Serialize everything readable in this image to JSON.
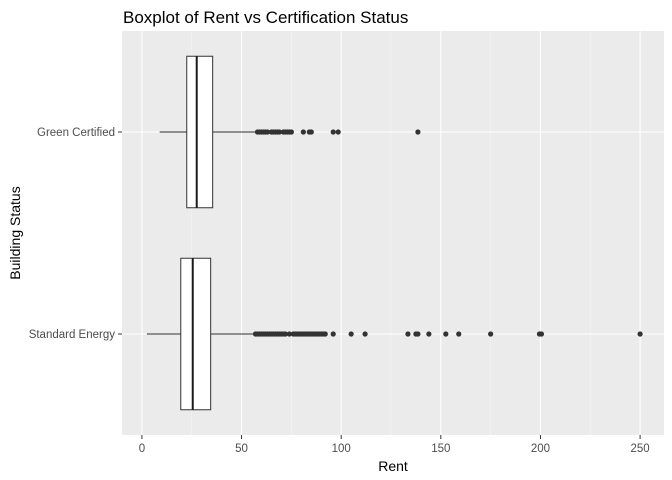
{
  "chart_data": {
    "type": "boxplot",
    "orientation": "horizontal",
    "title": "Boxplot of Rent vs Certification Status",
    "xlabel": "Rent",
    "ylabel": "Building Status",
    "xlim": [
      -10,
      262
    ],
    "x_ticks": [
      0,
      50,
      100,
      150,
      200,
      250
    ],
    "grid": true,
    "categories": [
      "Green Certified",
      "Standard Energy"
    ],
    "series": [
      {
        "category": "Green Certified",
        "whisker_low": 8.9,
        "q1": 22.5,
        "median": 27.5,
        "q3": 35.5,
        "whisker_high": 57,
        "outliers": [
          58,
          59,
          60,
          61,
          62,
          63,
          65,
          66,
          67,
          68,
          69,
          71,
          72,
          73,
          74,
          75,
          81,
          84,
          85,
          96,
          98.5,
          138.5
        ]
      },
      {
        "category": "Standard Energy",
        "whisker_low": 2.5,
        "q1": 19.5,
        "median": 25.5,
        "q3": 34.5,
        "whisker_high": 56,
        "outliers": [
          57,
          58,
          59,
          60,
          61,
          62,
          63,
          64,
          65,
          66,
          67,
          68,
          69,
          70,
          71,
          72,
          74,
          76,
          77,
          78,
          79,
          80,
          81,
          82,
          83,
          84,
          85,
          86,
          87,
          88,
          89,
          90,
          91,
          92,
          96,
          105,
          112,
          133.5,
          137.5,
          138.5,
          144,
          152.5,
          159,
          175,
          199.5,
          200.5,
          250
        ]
      }
    ]
  }
}
